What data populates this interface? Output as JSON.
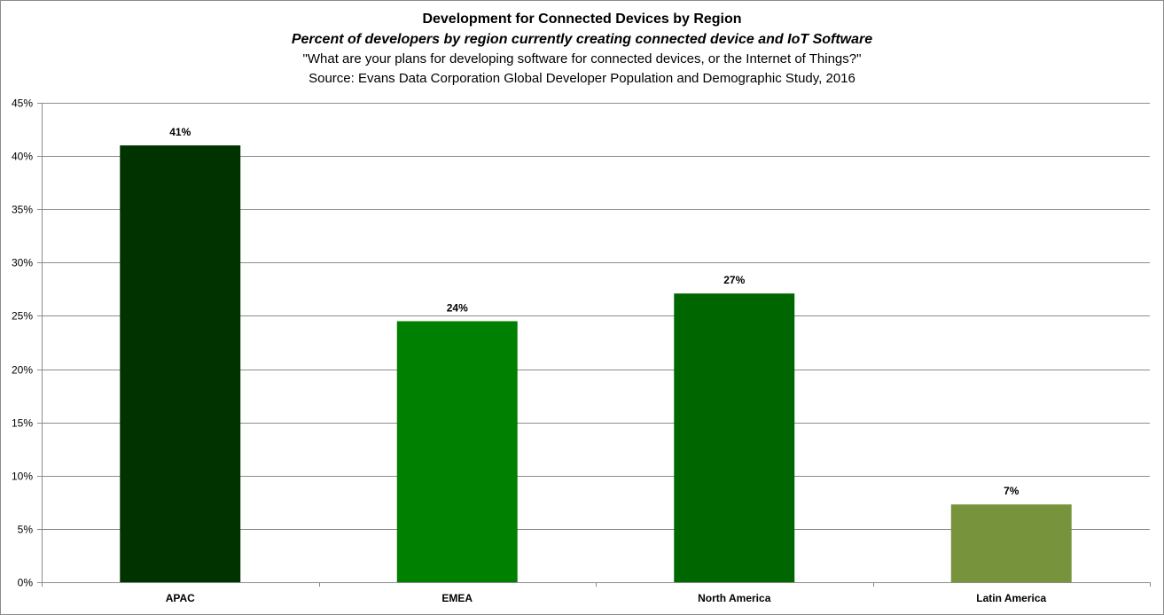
{
  "chart_data": {
    "type": "bar",
    "title": "Development for Connected Devices by Region",
    "subtitle": "Percent of developers by region currently creating connected device and IoT Software",
    "question": "\"What are your plans for developing software for connected devices, or the Internet of Things?\"",
    "source": "Source: Evans Data Corporation Global Developer Population and Demographic Study, 2016",
    "categories": [
      "APAC",
      "EMEA",
      "North America",
      "Latin America"
    ],
    "values": [
      41,
      24.5,
      27.1,
      7.3
    ],
    "data_labels": [
      "41%",
      "24%",
      "27%",
      "7%"
    ],
    "colors": [
      "#003300",
      "#008000",
      "#006600",
      "#77933C"
    ],
    "xlabel": "",
    "ylabel": "",
    "ylim": [
      0,
      45
    ],
    "yticks": [
      0,
      5,
      10,
      15,
      20,
      25,
      30,
      35,
      40,
      45
    ],
    "ytick_labels": [
      "0%",
      "5%",
      "10%",
      "15%",
      "20%",
      "25%",
      "30%",
      "35%",
      "40%",
      "45%"
    ],
    "grid": true,
    "legend": "none"
  }
}
